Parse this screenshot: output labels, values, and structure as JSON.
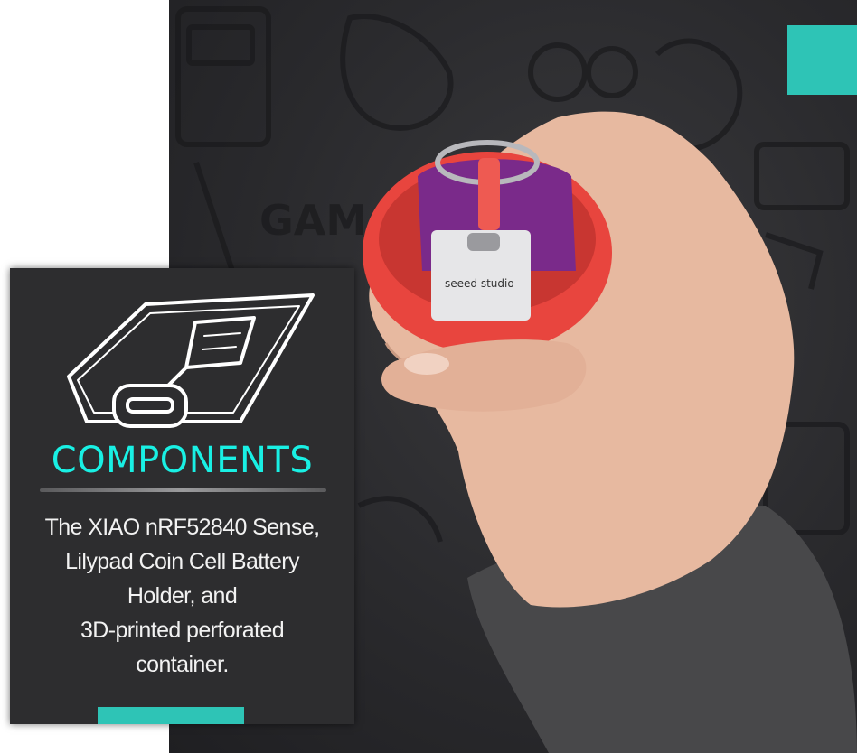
{
  "card": {
    "title": "COMPONENTS",
    "description": "The XIAO nRF52840 Sense,\nLilypad Coin Cell Battery\nHolder, and\n3D-printed perforated\ncontainer."
  },
  "illustration_icon": "circuit-board-sketch-icon",
  "photo": {
    "subject": "hand-holding-red-capsule-with-circuit-board"
  },
  "colors": {
    "accent": "#2ec4b6",
    "title": "#19f0e4",
    "card_bg": "#2d2d2f",
    "capsule": "#e8453e",
    "board": "#7a2a8a"
  }
}
